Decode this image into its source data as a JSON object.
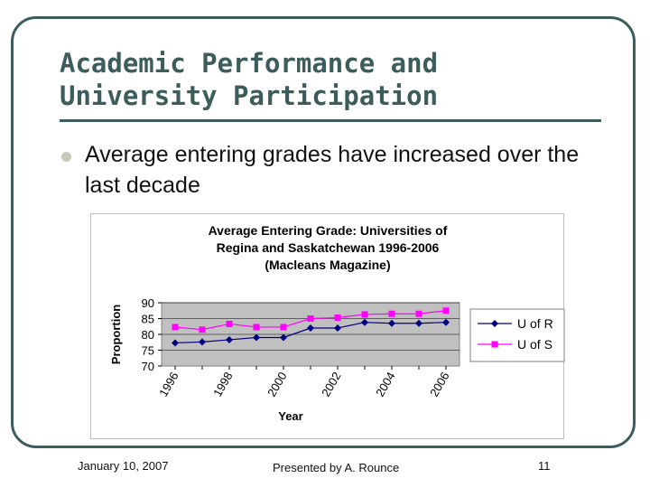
{
  "slide": {
    "title_line1": "Academic Performance and",
    "title_line2": "University Participation",
    "bullet": "Average entering grades have increased over the last  decade",
    "footer_date": "January 10, 2007",
    "footer_presenter": "Presented by A. Rounce",
    "footer_page": "11"
  },
  "colors": {
    "frame": "#3d5c5c",
    "plot_background": "#c0c0c0",
    "u_of_r": "#000080",
    "u_of_s": "#ff00ff"
  },
  "chart_data": {
    "type": "line",
    "title": "Average Entering Grade: Universities of Regina and Saskatchewan 1996-2006 (Macleans Magazine)",
    "title_lines": [
      "Average Entering Grade: Universities of",
      "Regina and Saskatchewan 1996-2006",
      "(Macleans Magazine)"
    ],
    "xlabel": "Year",
    "ylabel": "Proportion",
    "x": [
      1996,
      1997,
      1998,
      1999,
      2000,
      2001,
      2002,
      2003,
      2004,
      2005,
      2006
    ],
    "x_tick_labels": [
      "1996",
      "1998",
      "2000",
      "2002",
      "2004",
      "2006"
    ],
    "x_tick_values": [
      1996,
      1998,
      2000,
      2002,
      2004,
      2006
    ],
    "y_ticks": [
      70,
      75,
      80,
      85,
      90
    ],
    "ylim": [
      70,
      90
    ],
    "grid": "horizontal",
    "legend_position": "right",
    "series": [
      {
        "name": "U of R",
        "marker": "diamond",
        "color": "#000080",
        "values": [
          77.3,
          77.6,
          78.3,
          79.0,
          79.0,
          82.0,
          82.0,
          83.8,
          83.5,
          83.5,
          83.8
        ]
      },
      {
        "name": "U of S",
        "marker": "square",
        "color": "#ff00ff",
        "values": [
          82.3,
          81.5,
          83.3,
          82.3,
          82.3,
          85.0,
          85.3,
          86.3,
          86.5,
          86.5,
          87.5
        ]
      }
    ]
  }
}
